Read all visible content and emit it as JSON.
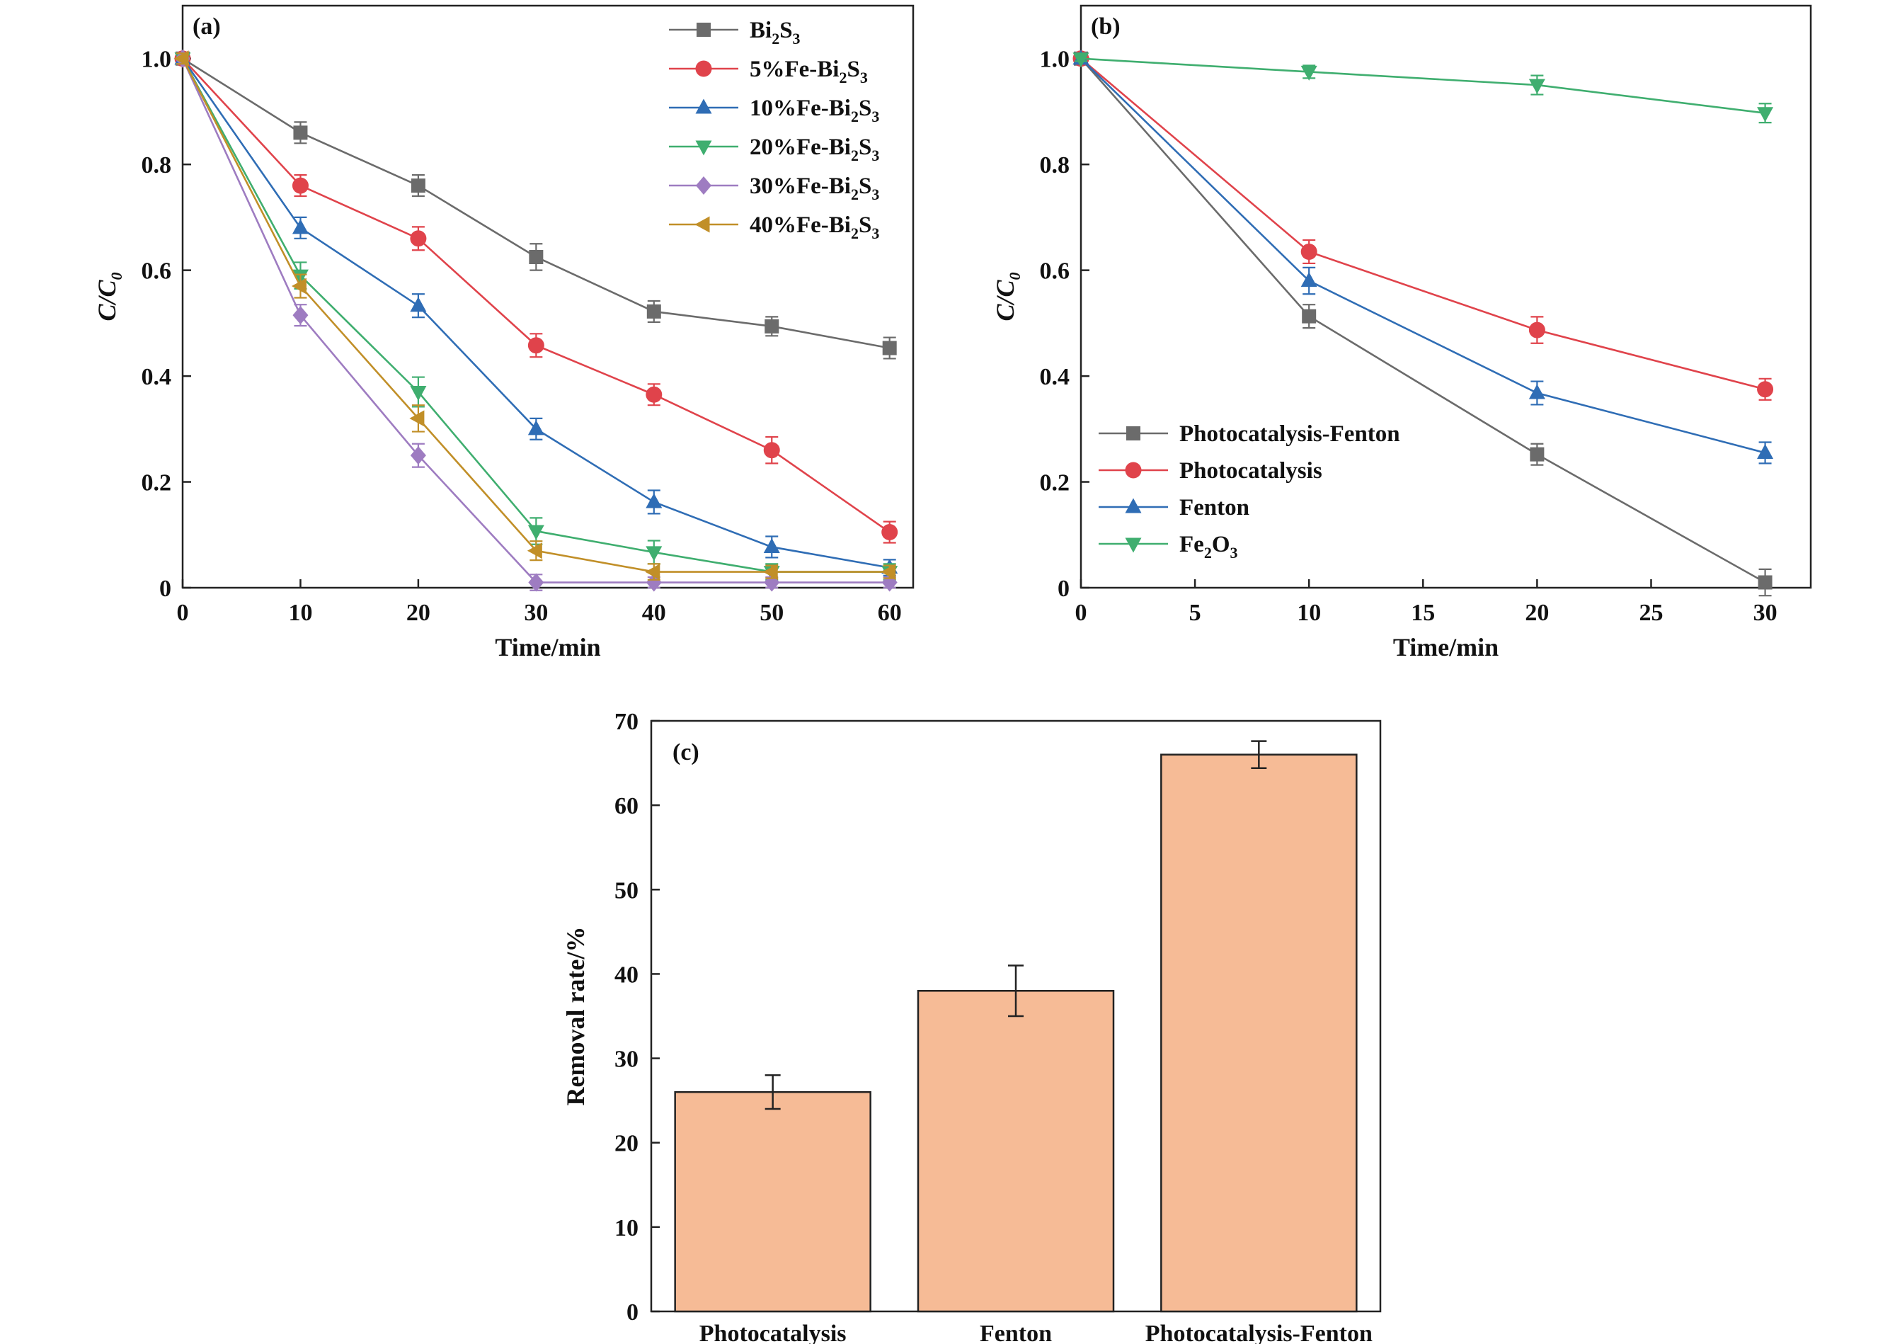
{
  "chart_data": [
    {
      "type": "line",
      "panel_label": "(a)",
      "xlabel": "Time/min",
      "ylabel": {
        "main": "C/C",
        "sub": "0"
      },
      "xlim": [
        0,
        62
      ],
      "ylim": [
        0,
        1.1
      ],
      "xticks": [
        "0",
        "10",
        "20",
        "30",
        "40",
        "50",
        "60"
      ],
      "yticks": [
        "0",
        "0.2",
        "0.4",
        "0.6",
        "0.8",
        "1.0"
      ],
      "x": [
        0,
        10,
        20,
        30,
        40,
        50,
        60
      ],
      "legend_position": "top-right",
      "series": [
        {
          "name": "Bi2S3",
          "legend": [
            {
              "t": "Bi"
            },
            {
              "t": "2",
              "sub": true
            },
            {
              "t": "S"
            },
            {
              "t": "3",
              "sub": true
            }
          ],
          "color": "#6b6b6b",
          "marker": "square",
          "values": [
            1.0,
            0.86,
            0.76,
            0.625,
            0.522,
            0.494,
            0.453
          ],
          "errors": [
            0.01,
            0.02,
            0.02,
            0.025,
            0.02,
            0.018,
            0.02
          ]
        },
        {
          "name": "5%Fe-Bi2S3",
          "legend": [
            {
              "t": "5%Fe-Bi"
            },
            {
              "t": "2",
              "sub": true
            },
            {
              "t": "S"
            },
            {
              "t": "3",
              "sub": true
            }
          ],
          "color": "#e0434b",
          "marker": "circle",
          "values": [
            1.0,
            0.76,
            0.66,
            0.458,
            0.365,
            0.26,
            0.105
          ],
          "errors": [
            0.01,
            0.02,
            0.022,
            0.022,
            0.02,
            0.025,
            0.02
          ]
        },
        {
          "name": "10%Fe-Bi2S3",
          "legend": [
            {
              "t": "10%Fe-Bi"
            },
            {
              "t": "2",
              "sub": true
            },
            {
              "t": "S"
            },
            {
              "t": "3",
              "sub": true
            }
          ],
          "color": "#2f6db5",
          "marker": "triangle-up",
          "values": [
            1.0,
            0.68,
            0.533,
            0.3,
            0.162,
            0.077,
            0.038
          ],
          "errors": [
            0.01,
            0.02,
            0.022,
            0.02,
            0.022,
            0.02,
            0.015
          ]
        },
        {
          "name": "20%Fe-Bi2S3",
          "legend": [
            {
              "t": "20%Fe-Bi"
            },
            {
              "t": "2",
              "sub": true
            },
            {
              "t": "S"
            },
            {
              "t": "3",
              "sub": true
            }
          ],
          "color": "#3fae6f",
          "marker": "triangle-down",
          "values": [
            1.0,
            0.59,
            0.37,
            0.107,
            0.067,
            0.03,
            0.03
          ],
          "errors": [
            0.01,
            0.025,
            0.028,
            0.025,
            0.022,
            0.015,
            0.015
          ]
        },
        {
          "name": "30%Fe-Bi2S3",
          "legend": [
            {
              "t": "30%Fe-Bi"
            },
            {
              "t": "2",
              "sub": true
            },
            {
              "t": "S"
            },
            {
              "t": "3",
              "sub": true
            }
          ],
          "color": "#9e7cc1",
          "marker": "diamond",
          "values": [
            1.0,
            0.515,
            0.25,
            0.01,
            0.01,
            0.01,
            0.01
          ],
          "errors": [
            0.01,
            0.02,
            0.022,
            0.015,
            0.01,
            0.01,
            0.01
          ]
        },
        {
          "name": "40%Fe-Bi2S3",
          "legend": [
            {
              "t": "40%Fe-Bi"
            },
            {
              "t": "2",
              "sub": true
            },
            {
              "t": "S"
            },
            {
              "t": "3",
              "sub": true
            }
          ],
          "color": "#c18f28",
          "marker": "triangle-left",
          "values": [
            1.0,
            0.57,
            0.32,
            0.07,
            0.03,
            0.03,
            0.03
          ],
          "errors": [
            0.01,
            0.022,
            0.025,
            0.018,
            0.015,
            0.012,
            0.012
          ]
        }
      ]
    },
    {
      "type": "line",
      "panel_label": "(b)",
      "xlabel": "Time/min",
      "ylabel": {
        "main": "C/C",
        "sub": "0"
      },
      "xlim": [
        0,
        32
      ],
      "ylim": [
        0,
        1.1
      ],
      "xticks": [
        "0",
        "5",
        "10",
        "15",
        "20",
        "25",
        "30"
      ],
      "yticks": [
        "0",
        "0.2",
        "0.4",
        "0.6",
        "0.8",
        "1.0"
      ],
      "x": [
        0,
        10,
        20,
        30
      ],
      "legend_position": "bottom-left",
      "series": [
        {
          "name": "Photocatalysis-Fenton",
          "legend": [
            {
              "t": "Photocatalysis-Fenton"
            }
          ],
          "color": "#6b6b6b",
          "marker": "square",
          "values": [
            1.0,
            0.513,
            0.252,
            0.01
          ],
          "errors": [
            0.01,
            0.022,
            0.02,
            0.025
          ]
        },
        {
          "name": "Photocatalysis",
          "legend": [
            {
              "t": "Photocatalysis"
            }
          ],
          "color": "#e0434b",
          "marker": "circle",
          "values": [
            1.0,
            0.635,
            0.487,
            0.375
          ],
          "errors": [
            0.01,
            0.022,
            0.025,
            0.02
          ]
        },
        {
          "name": "Fenton",
          "legend": [
            {
              "t": "Fenton"
            }
          ],
          "color": "#2f6db5",
          "marker": "triangle-up",
          "values": [
            1.0,
            0.58,
            0.368,
            0.255
          ],
          "errors": [
            0.01,
            0.025,
            0.022,
            0.02
          ]
        },
        {
          "name": "Fe2O3",
          "legend": [
            {
              "t": "Fe"
            },
            {
              "t": "2",
              "sub": true
            },
            {
              "t": "O"
            },
            {
              "t": "3",
              "sub": true
            }
          ],
          "color": "#3fae6f",
          "marker": "triangle-down",
          "values": [
            1.0,
            0.975,
            0.95,
            0.897
          ],
          "errors": [
            0.005,
            0.012,
            0.018,
            0.018
          ]
        }
      ]
    },
    {
      "type": "bar",
      "panel_label": "(c)",
      "ylabel": "Removal rate/%",
      "ylim": [
        0,
        70
      ],
      "yticks": [
        "0",
        "10",
        "20",
        "30",
        "40",
        "50",
        "60",
        "70"
      ],
      "categories": [
        "Photocatalysis",
        "Fenton",
        "Photocatalysis-Fenton"
      ],
      "values": [
        26,
        38,
        66
      ],
      "errors": [
        2,
        3,
        1.6
      ],
      "bar_color": "#f6bb96"
    }
  ]
}
